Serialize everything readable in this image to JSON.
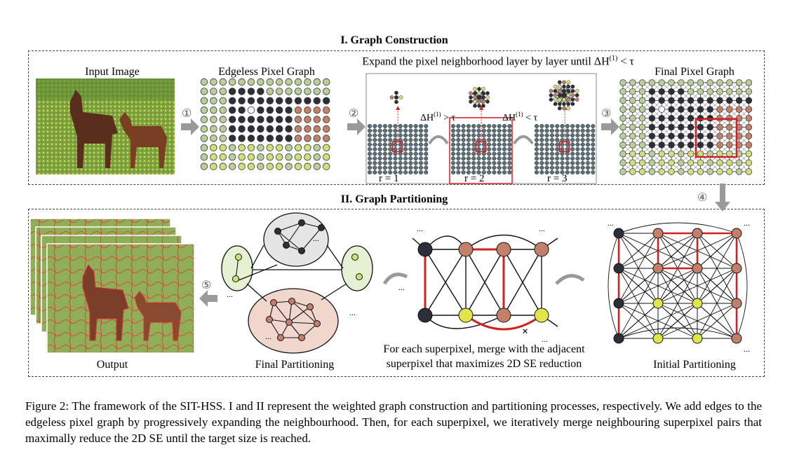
{
  "section1": {
    "title": "I. Graph Construction",
    "expand_text": "Expand the pixel neighborhood layer by layer until ΔH",
    "expand_sup": "(1)",
    "expand_tail": " < τ"
  },
  "section2": {
    "title": "II. Graph Partitioning"
  },
  "labels": {
    "input_image": "Input Image",
    "edgeless_graph": "Edgeless Pixel Graph",
    "final_pixel_graph": "Final Pixel Graph",
    "output": "Output",
    "final_partitioning": "Final Partitioning",
    "initial_partitioning": "Initial Partitioning",
    "merge_line1": "For each superpixel, merge with the adjacent",
    "merge_line2": "superpixel that maximizes 2D SE reduction",
    "r1": "r = 1",
    "r2": "r = 2",
    "r3": "r = 3",
    "dh_gt": "ΔH",
    "dh_gt_sup": "(1)",
    "dh_gt_tail": " > τ",
    "dh_lt": "ΔH",
    "dh_lt_sup": "(1)",
    "dh_lt_tail": " < τ",
    "ellipsis": "..."
  },
  "steps": [
    "①",
    "②",
    "③",
    "④",
    "⑤"
  ],
  "colors": {
    "dark": "#2c2f3a",
    "green": "#b8cf9a",
    "olive": "#cfe07a",
    "yellow": "#dfe64c",
    "brown": "#c2806b",
    "red": "#d21f1f",
    "grass": "#7ea343"
  },
  "caption": "Figure 2: The framework of the SIT-HSS. I and II represent the weighted graph construction and partitioning processes, respectively. We add edges to the edgeless pixel graph by progressively expanding the neighbourhood. Then, for each superpixel, we iteratively merge neighbouring superpixel pairs that maximally reduce the 2D SE until the target size is reached."
}
